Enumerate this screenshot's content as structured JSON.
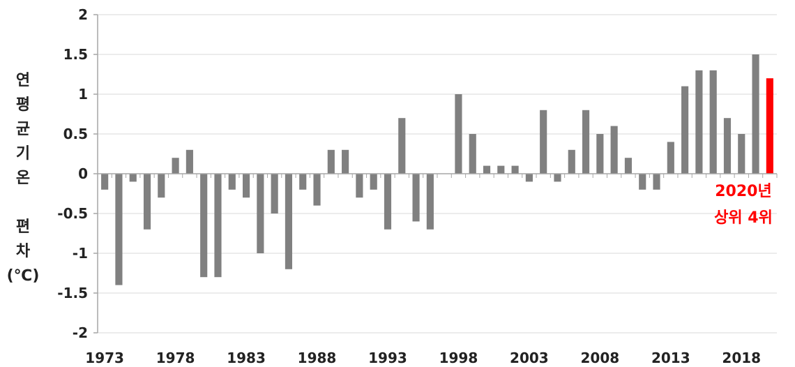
{
  "chart_data": {
    "type": "bar",
    "ylabel_lines": [
      "연",
      "평",
      "균",
      "기",
      "온",
      "",
      "편",
      "차",
      "(℃)"
    ],
    "ylim": [
      -2,
      2
    ],
    "yticks": [
      2,
      1.5,
      1,
      0.5,
      0,
      -0.5,
      -1,
      -1.5,
      -2
    ],
    "ytick_labels": [
      "2",
      "1.5",
      "1",
      "0.5",
      "0",
      "-0.5",
      "-1",
      "-1.5",
      "-2"
    ],
    "xtick_labels": [
      "1973",
      "1978",
      "1983",
      "1988",
      "1993",
      "1998",
      "2003",
      "2008",
      "2013",
      "2018"
    ],
    "grid": "horizontal",
    "categories": [
      "1973",
      "1974",
      "1975",
      "1976",
      "1977",
      "1978",
      "1979",
      "1980",
      "1981",
      "1982",
      "1983",
      "1984",
      "1985",
      "1986",
      "1987",
      "1988",
      "1989",
      "1990",
      "1991",
      "1992",
      "1993",
      "1994",
      "1995",
      "1996",
      "1997",
      "1998",
      "1999",
      "2000",
      "2001",
      "2002",
      "2003",
      "2004",
      "2005",
      "2006",
      "2007",
      "2008",
      "2009",
      "2010",
      "2011",
      "2012",
      "2013",
      "2014",
      "2015",
      "2016",
      "2017",
      "2018",
      "2019",
      "2020"
    ],
    "values": [
      -0.2,
      -1.4,
      -0.1,
      -0.7,
      -0.3,
      0.2,
      0.3,
      -1.3,
      -1.3,
      -0.2,
      -0.3,
      -1.0,
      -0.5,
      -1.2,
      -0.2,
      -0.4,
      0.3,
      0.3,
      -0.3,
      -0.2,
      -0.7,
      0.7,
      -0.6,
      -0.7,
      0.0,
      1.0,
      0.5,
      0.1,
      0.1,
      0.1,
      -0.1,
      0.8,
      -0.1,
      0.3,
      0.8,
      0.5,
      0.6,
      0.2,
      -0.2,
      -0.2,
      0.4,
      1.1,
      1.3,
      1.3,
      0.7,
      0.5,
      1.5,
      1.2
    ],
    "bar_color": "#808080",
    "highlight_category": "2020",
    "highlight_color": "#ff0000",
    "annotation": {
      "line1": "2020년",
      "line2": "상위 4위",
      "color": "#ff0000"
    }
  }
}
